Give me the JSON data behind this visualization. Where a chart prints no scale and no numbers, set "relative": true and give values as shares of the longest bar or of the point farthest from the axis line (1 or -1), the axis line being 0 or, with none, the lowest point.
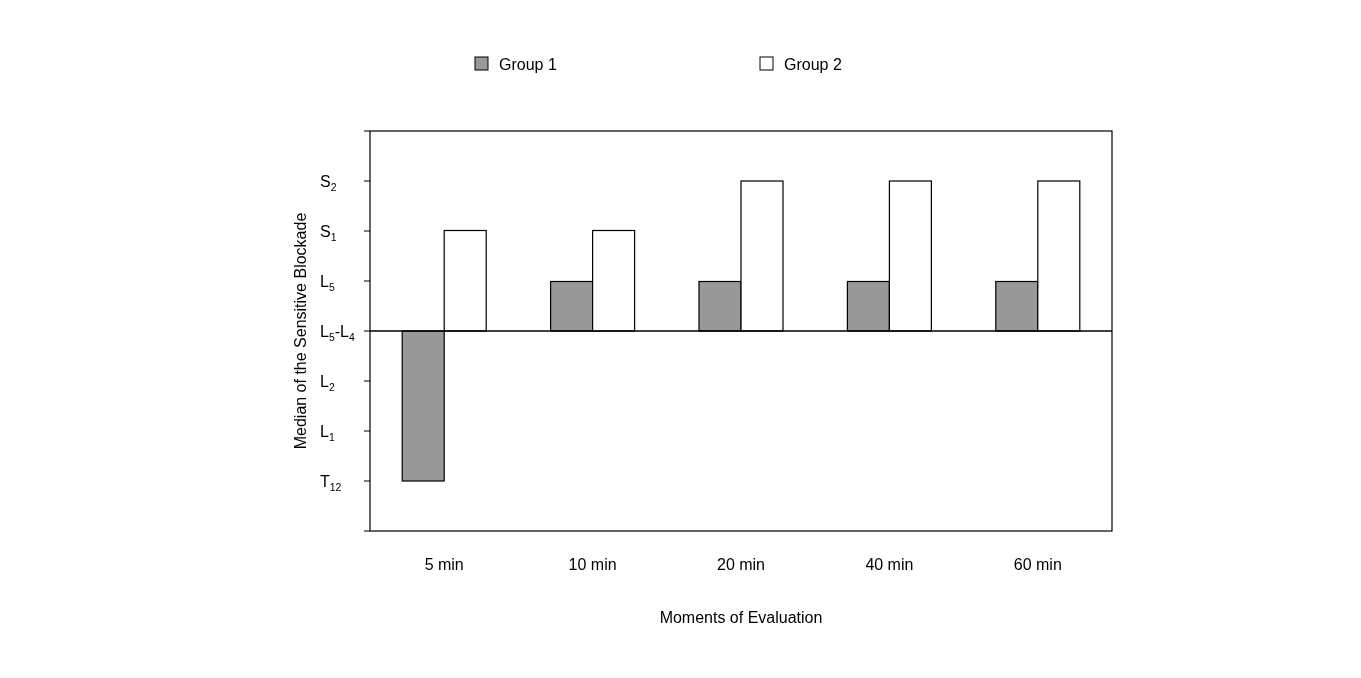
{
  "chart_data": {
    "type": "bar",
    "xlabel": "Moments of Evaluation",
    "ylabel": "Median of the Sensitive Blockade",
    "categories": [
      "5 min",
      "10 min",
      "20 min",
      "40 min",
      "60 min"
    ],
    "series": [
      {
        "name": "Group 1",
        "color": "#999999",
        "values": [
          -1,
          0.33,
          0.33,
          0.33,
          0.33
        ]
      },
      {
        "name": "Group 2",
        "color": "#ffffff",
        "values": [
          0.67,
          0.67,
          1,
          1,
          1
        ]
      }
    ],
    "relative": true,
    "annotations": [
      "T$_{12}$",
      "L$_{1}$",
      "L$_{2}$",
      "L$_{5}$-L$_{4}$",
      "L$_{5}$",
      "S$_{1}$",
      "S$_{2}$"
    ],
    "grid": false,
    "legend": "top"
  }
}
